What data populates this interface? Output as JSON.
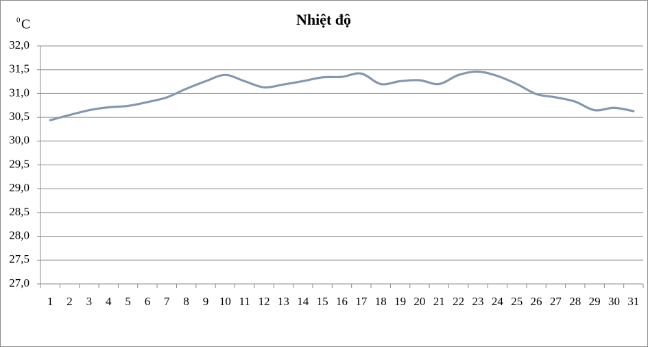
{
  "chart_data": {
    "type": "line",
    "title": "Nhiệt độ",
    "y_axis_label_sup": "0",
    "y_axis_label": "C",
    "categories": [
      "1",
      "2",
      "3",
      "4",
      "5",
      "6",
      "7",
      "8",
      "9",
      "10",
      "11",
      "12",
      "13",
      "14",
      "15",
      "16",
      "17",
      "18",
      "19",
      "20",
      "21",
      "22",
      "23",
      "24",
      "25",
      "26",
      "27",
      "28",
      "29",
      "30",
      "31"
    ],
    "series": [
      {
        "name": "Nhiệt độ",
        "color": "#8497b0",
        "values": [
          30.44,
          30.55,
          30.65,
          30.71,
          30.74,
          30.82,
          30.92,
          31.1,
          31.26,
          31.39,
          31.26,
          31.13,
          31.19,
          31.26,
          31.34,
          31.35,
          31.42,
          31.2,
          31.26,
          31.28,
          31.2,
          31.39,
          31.46,
          31.37,
          31.2,
          30.99,
          30.92,
          30.83,
          30.65,
          30.7,
          30.63
        ]
      }
    ],
    "ylim": [
      27.0,
      32.0
    ],
    "yticks": [
      {
        "value": 27.0,
        "label": "27,0"
      },
      {
        "value": 27.5,
        "label": "27,5"
      },
      {
        "value": 28.0,
        "label": "28,0"
      },
      {
        "value": 28.5,
        "label": "28,5"
      },
      {
        "value": 29.0,
        "label": "29,0"
      },
      {
        "value": 29.5,
        "label": "29,5"
      },
      {
        "value": 30.0,
        "label": "30,0"
      },
      {
        "value": 30.5,
        "label": "30,5"
      },
      {
        "value": 31.0,
        "label": "31,0"
      },
      {
        "value": 31.5,
        "label": "31,5"
      },
      {
        "value": 32.0,
        "label": "32,0"
      }
    ],
    "grid": true
  }
}
